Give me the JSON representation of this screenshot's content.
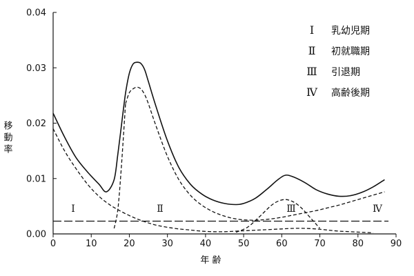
{
  "chart_data": {
    "type": "line",
    "title": "",
    "xlabel": "年 齢",
    "ylabel": "移動率",
    "xlim": [
      0,
      90
    ],
    "ylim": [
      0,
      0.04
    ],
    "x_ticks": [
      "0",
      "10",
      "20",
      "30",
      "40",
      "50",
      "60",
      "70",
      "80",
      "90"
    ],
    "y_ticks": [
      "0.00",
      "0.01",
      "0.02",
      "0.03",
      "0.04"
    ],
    "grid": false,
    "legend_placement": "top-right",
    "legend": [
      {
        "numeral": "Ⅰ",
        "label": "乳幼児期"
      },
      {
        "numeral": "Ⅱ",
        "label": "初就職期"
      },
      {
        "numeral": "Ⅲ",
        "label": "引退期"
      },
      {
        "numeral": "Ⅳ",
        "label": "高齢後期"
      }
    ],
    "region_labels": [
      {
        "text": "Ⅰ",
        "x": 6.5,
        "y": 0.0045
      },
      {
        "text": "Ⅱ",
        "x": 34,
        "y": 0.0045
      },
      {
        "text": "Ⅲ",
        "x": 76.5,
        "y": 0.0045
      },
      {
        "text": "Ⅳ",
        "x": 104,
        "y": 0.0045
      }
    ],
    "series": [
      {
        "style": "solid",
        "x": [
          0,
          3,
          6,
          9,
          12,
          14,
          16,
          17,
          18,
          19,
          20,
          21,
          22,
          23,
          24,
          25,
          27,
          30,
          33,
          36,
          39,
          42,
          45,
          48,
          50,
          53,
          56,
          59,
          61,
          63,
          66,
          69,
          72,
          75,
          78,
          81,
          84,
          87
        ],
        "y": [
          0.0218,
          0.0175,
          0.0138,
          0.0112,
          0.009,
          0.0076,
          0.0098,
          0.0145,
          0.02,
          0.0254,
          0.029,
          0.0307,
          0.031,
          0.0308,
          0.0297,
          0.0275,
          0.023,
          0.0168,
          0.012,
          0.009,
          0.0072,
          0.0061,
          0.0055,
          0.0053,
          0.0055,
          0.0064,
          0.008,
          0.0098,
          0.0106,
          0.0103,
          0.0093,
          0.008,
          0.0072,
          0.0068,
          0.0069,
          0.0075,
          0.0085,
          0.0098
        ]
      },
      {
        "style": "dashed",
        "x": [
          0,
          3,
          6,
          9,
          12,
          15,
          18,
          21,
          24,
          27,
          30,
          33,
          36,
          39,
          42,
          45,
          48,
          51,
          54,
          57,
          60,
          63,
          66,
          69,
          72,
          75,
          78,
          81,
          84
        ],
        "y": [
          0.019,
          0.015,
          0.0118,
          0.009,
          0.0068,
          0.0052,
          0.004,
          0.003,
          0.0022,
          0.0016,
          0.0012,
          0.0009,
          0.0007,
          0.0005,
          0.0004,
          0.0004,
          0.0005,
          0.0006,
          0.0007,
          0.0008,
          0.0009,
          0.001,
          0.001,
          0.0009,
          0.0007,
          0.0005,
          0.0004,
          0.0003,
          0.0002
        ]
      },
      {
        "style": "dashed",
        "x": [
          19,
          20,
          21,
          22,
          23,
          24,
          25,
          27,
          30,
          33,
          36,
          39,
          42,
          45,
          48,
          51,
          54,
          57,
          60,
          63,
          66,
          69,
          72,
          75,
          78,
          81,
          84,
          87
        ],
        "y": [
          0.0235,
          0.0255,
          0.0262,
          0.0265,
          0.0262,
          0.0252,
          0.0235,
          0.0195,
          0.014,
          0.0098,
          0.007,
          0.0052,
          0.004,
          0.0032,
          0.0027,
          0.0025,
          0.0025,
          0.0027,
          0.003,
          0.0034,
          0.0038,
          0.0042,
          0.0047,
          0.0052,
          0.0058,
          0.0064,
          0.007,
          0.0076
        ]
      },
      {
        "style": "dashed",
        "x": [
          16,
          17,
          18,
          19
        ],
        "y": [
          0.001,
          0.0045,
          0.013,
          0.0235
        ]
      },
      {
        "style": "dashed",
        "x": [
          48,
          51,
          54,
          57,
          59,
          61,
          63,
          65,
          67,
          70
        ],
        "y": [
          0.0003,
          0.0012,
          0.003,
          0.005,
          0.0059,
          0.0062,
          0.0058,
          0.0048,
          0.0033,
          0.001
        ]
      },
      {
        "style": "longdash",
        "x": [
          0,
          88
        ],
        "y": [
          0.0023,
          0.0023
        ]
      }
    ]
  }
}
